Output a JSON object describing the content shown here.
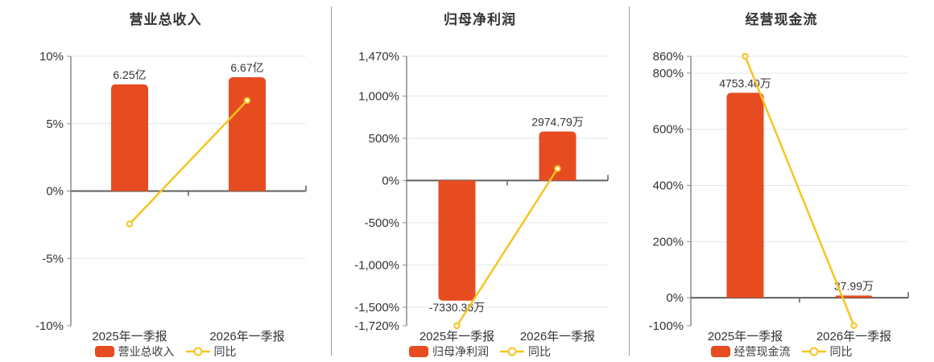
{
  "colors": {
    "bar": "#e74c20",
    "line": "#f6c51f",
    "text": "#333333",
    "grid": "#e2e7ee",
    "zero_axis": "#5f5f5f",
    "axis": "#8c8c8c",
    "divider": "#9a9a9a",
    "background": "#ffffff"
  },
  "chart_data": [
    {
      "type": "bar",
      "title": "营业总收入",
      "categories": [
        "2025年一季报",
        "2026年一季报"
      ],
      "bar_series": {
        "name": "营业总收入",
        "values": [
          6.25,
          6.67
        ],
        "unit": "亿",
        "value_labels": [
          "6.25亿",
          "6.67亿"
        ],
        "display_pct": [
          7.92,
          8.45
        ]
      },
      "line_series": {
        "name": "同比",
        "values_pct": [
          -2.44,
          6.72
        ]
      },
      "ylim": [
        -10,
        10
      ],
      "yticks": [
        {
          "v": 10,
          "label": "10%"
        },
        {
          "v": 5,
          "label": "5%"
        },
        {
          "v": 0,
          "label": "0%"
        },
        {
          "v": -5,
          "label": "-5%"
        },
        {
          "v": -10,
          "label": "-10%"
        }
      ],
      "legend_position": "bottom",
      "grid": true
    },
    {
      "type": "bar",
      "title": "归母净利润",
      "categories": [
        "2025年一季报",
        "2026年一季报"
      ],
      "bar_series": {
        "name": "归母净利润",
        "values": [
          -7330.36,
          2974.79
        ],
        "unit": "万",
        "value_labels": [
          "-7330.36万",
          "2974.79万"
        ],
        "display_pct": [
          -1423,
          580
        ]
      },
      "line_series": {
        "name": "同比",
        "values_pct": [
          -1720,
          140.58
        ]
      },
      "ylim": [
        -1720,
        1470
      ],
      "yticks": [
        {
          "v": 1470,
          "label": "1,470%"
        },
        {
          "v": 1000,
          "label": "1,000%"
        },
        {
          "v": 500,
          "label": "500%"
        },
        {
          "v": 0,
          "label": "0%"
        },
        {
          "v": -500,
          "label": "-500%"
        },
        {
          "v": -1000,
          "label": "-1,000%"
        },
        {
          "v": -1500,
          "label": "-1,500%"
        },
        {
          "v": -1720,
          "label": "-1,720%"
        }
      ],
      "legend_position": "bottom",
      "grid": true
    },
    {
      "type": "bar",
      "title": "经营现金流",
      "categories": [
        "2025年一季报",
        "2026年一季报"
      ],
      "bar_series": {
        "name": "经营现金流",
        "values": [
          4753.4,
          37.99
        ],
        "unit": "万",
        "value_labels": [
          "4753.40万",
          "37.99万"
        ],
        "display_pct": [
          730,
          8
        ]
      },
      "line_series": {
        "name": "同比",
        "values_pct": [
          860,
          -99.2
        ]
      },
      "ylim": [
        -100,
        860
      ],
      "yticks": [
        {
          "v": 860,
          "label": "860%"
        },
        {
          "v": 800,
          "label": "800%"
        },
        {
          "v": 600,
          "label": "600%"
        },
        {
          "v": 400,
          "label": "400%"
        },
        {
          "v": 200,
          "label": "200%"
        },
        {
          "v": 0,
          "label": "0%"
        },
        {
          "v": -100,
          "label": "-100%"
        }
      ],
      "legend_position": "bottom",
      "grid": true
    }
  ]
}
